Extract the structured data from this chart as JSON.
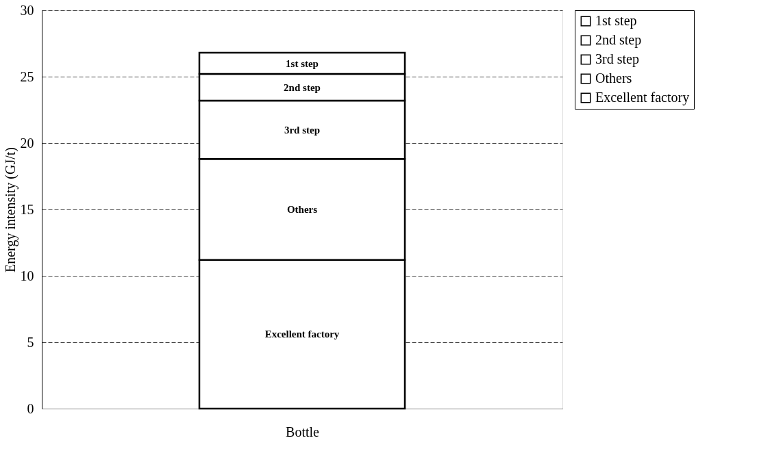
{
  "chart_data": {
    "type": "bar",
    "stacked": true,
    "categories": [
      "Bottle"
    ],
    "ylabel": "Energy intensity (GJ/t)",
    "series": [
      {
        "name": "Excellent factory",
        "color": "#ffffff",
        "values": [
          11.2
        ]
      },
      {
        "name": "Others",
        "color": "#ffffff",
        "values": [
          7.6
        ]
      },
      {
        "name": "3rd step",
        "color": "#ffffff",
        "values": [
          4.4
        ]
      },
      {
        "name": "2nd step",
        "color": "#ffffff",
        "values": [
          2.0
        ]
      },
      {
        "name": "1st step",
        "color": "#ffffff",
        "values": [
          1.6
        ]
      }
    ],
    "ylim": [
      0,
      30
    ],
    "yticks": [
      0,
      5,
      10,
      15,
      20,
      25,
      30
    ],
    "grid": "y",
    "legend": "right"
  }
}
